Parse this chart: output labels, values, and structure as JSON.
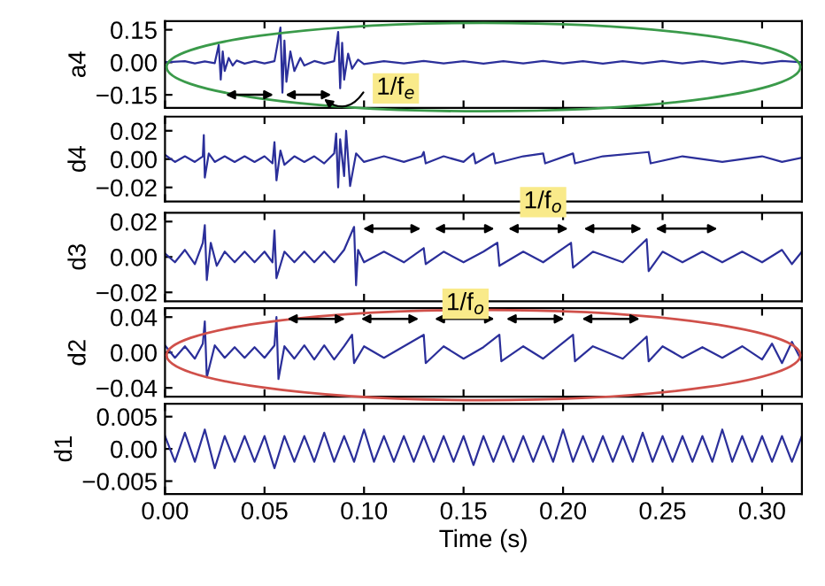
{
  "chart_data": [
    {
      "type": "line",
      "ylabel": "a4",
      "xlim": [
        0,
        0.32
      ],
      "ylim": [
        -0.21,
        0.19
      ],
      "tick_labels": "y",
      "grid": false,
      "xticks": [
        0,
        0.05,
        0.1,
        0.15,
        0.2,
        0.25,
        0.3
      ],
      "yticks": [
        {
          "value": 0.15,
          "label": "0.15"
        },
        {
          "value": 0,
          "label": "0.00"
        },
        {
          "value": -0.15,
          "label": "−0.15"
        }
      ],
      "annotations": [
        {
          "text": "1/f$_{e}$",
          "x": 0.116,
          "y": -0.12
        }
      ],
      "series": [
        {
          "color": "#2b2f9a",
          "x": [
            0,
            0.01,
            0.015,
            0.02,
            0.025,
            0.027,
            0.028,
            0.029,
            0.03,
            0.032,
            0.034,
            0.036,
            0.04,
            0.045,
            0.05,
            0.055,
            0.058,
            0.059,
            0.06,
            0.061,
            0.063,
            0.065,
            0.068,
            0.07,
            0.075,
            0.08,
            0.085,
            0.087,
            0.088,
            0.089,
            0.09,
            0.092,
            0.094,
            0.097,
            0.1,
            0.11,
            0.12,
            0.13,
            0.14,
            0.15,
            0.16,
            0.17,
            0.18,
            0.19,
            0.2,
            0.21,
            0.22,
            0.23,
            0.24,
            0.25,
            0.26,
            0.27,
            0.28,
            0.29,
            0.3,
            0.31,
            0.32
          ],
          "values": [
            0,
            0.005,
            -0.005,
            0.004,
            -0.004,
            0.08,
            -0.08,
            0.05,
            -0.04,
            0.02,
            -0.015,
            0.008,
            -0.006,
            0.005,
            -0.005,
            0.005,
            0.16,
            -0.14,
            0.1,
            -0.09,
            0.05,
            -0.04,
            0.02,
            -0.015,
            0.006,
            -0.006,
            0.005,
            0.14,
            -0.12,
            0.09,
            -0.08,
            0.04,
            -0.03,
            0.012,
            -0.008,
            0.005,
            -0.005,
            0.006,
            -0.005,
            0.005,
            -0.006,
            0.005,
            -0.005,
            0.006,
            -0.005,
            0.005,
            -0.006,
            0.005,
            -0.005,
            0.006,
            -0.005,
            0.005,
            -0.006,
            0.005,
            -0.005,
            0.006,
            0
          ]
        }
      ]
    },
    {
      "type": "line",
      "ylabel": "d4",
      "xlim": [
        0,
        0.32
      ],
      "ylim": [
        -0.03,
        0.03
      ],
      "tick_labels": "y",
      "grid": false,
      "xticks": [
        0,
        0.05,
        0.1,
        0.15,
        0.2,
        0.25,
        0.3
      ],
      "yticks": [
        {
          "value": 0.02,
          "label": "0.02"
        },
        {
          "value": 0,
          "label": "0.00"
        },
        {
          "value": -0.02,
          "label": "−0.02"
        }
      ],
      "series": [
        {
          "color": "#2b2f9a",
          "x": [
            0,
            0.005,
            0.01,
            0.015,
            0.019,
            0.0195,
            0.02,
            0.022,
            0.025,
            0.03,
            0.035,
            0.04,
            0.045,
            0.05,
            0.054,
            0.055,
            0.056,
            0.058,
            0.06,
            0.065,
            0.07,
            0.075,
            0.08,
            0.085,
            0.086,
            0.087,
            0.088,
            0.09,
            0.091,
            0.093,
            0.096,
            0.1,
            0.11,
            0.12,
            0.129,
            0.13,
            0.131,
            0.14,
            0.15,
            0.155,
            0.156,
            0.165,
            0.166,
            0.18,
            0.19,
            0.191,
            0.205,
            0.206,
            0.22,
            0.243,
            0.244,
            0.26,
            0.28,
            0.3,
            0.31,
            0.32
          ],
          "values": [
            0.003,
            -0.002,
            0.002,
            -0.002,
            0.002,
            0.017,
            -0.013,
            0.004,
            -0.002,
            0.002,
            -0.002,
            0.002,
            -0.002,
            0.002,
            -0.003,
            0.012,
            -0.015,
            0.006,
            -0.004,
            0.002,
            -0.002,
            0.002,
            -0.003,
            0.004,
            0.018,
            -0.02,
            0.014,
            -0.012,
            0.02,
            -0.019,
            0.004,
            -0.002,
            0.002,
            -0.002,
            0.002,
            0.005,
            -0.003,
            0.002,
            -0.002,
            0.004,
            -0.003,
            0.004,
            -0.003,
            0.002,
            0.004,
            -0.003,
            0.004,
            -0.003,
            0.002,
            0.005,
            -0.003,
            0.002,
            -0.002,
            0.002,
            -0.002,
            0.001
          ]
        }
      ]
    },
    {
      "type": "line",
      "ylabel": "d3",
      "xlim": [
        0,
        0.32
      ],
      "ylim": [
        -0.025,
        0.025
      ],
      "tick_labels": "y",
      "grid": false,
      "xticks": [
        0,
        0.05,
        0.1,
        0.15,
        0.2,
        0.25,
        0.3
      ],
      "yticks": [
        {
          "value": 0.02,
          "label": "0.02"
        },
        {
          "value": 0,
          "label": "0.00"
        },
        {
          "value": -0.02,
          "label": "−0.02"
        }
      ],
      "annotations": [
        {
          "text": "1/f$_{o}$",
          "x": 0.19,
          "y": 0.031
        }
      ],
      "series": [
        {
          "color": "#2b2f9a",
          "x": [
            0,
            0.005,
            0.01,
            0.015,
            0.019,
            0.02,
            0.021,
            0.023,
            0.026,
            0.03,
            0.035,
            0.04,
            0.045,
            0.05,
            0.054,
            0.055,
            0.056,
            0.06,
            0.065,
            0.07,
            0.075,
            0.08,
            0.085,
            0.09,
            0.095,
            0.096,
            0.097,
            0.1,
            0.11,
            0.12,
            0.13,
            0.131,
            0.14,
            0.15,
            0.16,
            0.167,
            0.168,
            0.18,
            0.19,
            0.204,
            0.205,
            0.215,
            0.23,
            0.242,
            0.243,
            0.25,
            0.26,
            0.27,
            0.28,
            0.29,
            0.3,
            0.31,
            0.315,
            0.32
          ],
          "values": [
            0.002,
            -0.003,
            0.004,
            -0.004,
            0.008,
            0.018,
            -0.013,
            0.008,
            -0.005,
            0.003,
            -0.003,
            0.003,
            -0.003,
            0.003,
            -0.003,
            0.015,
            -0.012,
            0.003,
            -0.003,
            0.003,
            -0.003,
            0.003,
            -0.003,
            0.004,
            0.017,
            -0.016,
            0.004,
            -0.003,
            0.003,
            -0.003,
            0.005,
            -0.004,
            0.003,
            -0.003,
            0.003,
            0.008,
            -0.005,
            0.003,
            -0.003,
            0.008,
            -0.006,
            0.003,
            -0.003,
            0.01,
            -0.008,
            0.003,
            -0.003,
            0.003,
            -0.003,
            0.003,
            -0.003,
            0.004,
            -0.004,
            0.003
          ]
        }
      ]
    },
    {
      "type": "line",
      "ylabel": "d2",
      "xlim": [
        0,
        0.32
      ],
      "ylim": [
        -0.05,
        0.05
      ],
      "tick_labels": "y",
      "grid": false,
      "xticks": [
        0,
        0.05,
        0.1,
        0.15,
        0.2,
        0.25,
        0.3
      ],
      "yticks": [
        {
          "value": 0.04,
          "label": "0.04"
        },
        {
          "value": 0,
          "label": "0.00"
        },
        {
          "value": -0.04,
          "label": "−0.04"
        }
      ],
      "annotations": [
        {
          "text": "1/f$_{o}$",
          "x": 0.151,
          "y": 0.055
        }
      ],
      "series": [
        {
          "color": "#2b2f9a",
          "x": [
            0,
            0.005,
            0.01,
            0.015,
            0.019,
            0.02,
            0.021,
            0.025,
            0.03,
            0.035,
            0.04,
            0.045,
            0.05,
            0.055,
            0.056,
            0.057,
            0.06,
            0.065,
            0.07,
            0.075,
            0.08,
            0.085,
            0.09,
            0.094,
            0.095,
            0.1,
            0.11,
            0.12,
            0.13,
            0.131,
            0.14,
            0.15,
            0.16,
            0.168,
            0.169,
            0.18,
            0.19,
            0.205,
            0.206,
            0.215,
            0.23,
            0.242,
            0.243,
            0.25,
            0.26,
            0.27,
            0.28,
            0.29,
            0.3,
            0.305,
            0.31,
            0.315,
            0.32
          ],
          "values": [
            0.008,
            -0.006,
            0.007,
            -0.007,
            0.01,
            0.035,
            -0.028,
            0.008,
            -0.006,
            0.006,
            -0.006,
            0.006,
            -0.006,
            0.008,
            0.04,
            -0.03,
            0.007,
            -0.007,
            0.008,
            -0.008,
            0.008,
            -0.008,
            0.007,
            0.02,
            -0.012,
            0.007,
            -0.006,
            0.007,
            0.02,
            -0.012,
            0.007,
            -0.007,
            0.006,
            0.02,
            -0.01,
            0.007,
            -0.007,
            0.02,
            -0.01,
            0.007,
            -0.007,
            0.018,
            -0.01,
            0.007,
            -0.006,
            0.006,
            -0.006,
            0.007,
            -0.008,
            0.01,
            -0.012,
            0.012,
            -0.01
          ]
        }
      ]
    },
    {
      "type": "line",
      "ylabel": "d1",
      "xlabel": "Time (s)",
      "xlim": [
        0,
        0.32
      ],
      "ylim": [
        -0.007,
        0.007
      ],
      "grid": false,
      "xticks": [
        {
          "value": 0,
          "label": "0.00"
        },
        {
          "value": 0.05,
          "label": "0.05"
        },
        {
          "value": 0.1,
          "label": "0.10"
        },
        {
          "value": 0.15,
          "label": "0.15"
        },
        {
          "value": 0.2,
          "label": "0.20"
        },
        {
          "value": 0.25,
          "label": "0.25"
        },
        {
          "value": 0.3,
          "label": "0.30"
        }
      ],
      "yticks": [
        {
          "value": 0.005,
          "label": "0.005"
        },
        {
          "value": 0,
          "label": "0.00"
        },
        {
          "value": -0.005,
          "label": "−0.005"
        }
      ],
      "series": [
        {
          "color": "#2b2f9a",
          "x": [
            0,
            0.005,
            0.01,
            0.015,
            0.02,
            0.025,
            0.03,
            0.035,
            0.04,
            0.045,
            0.05,
            0.055,
            0.06,
            0.065,
            0.07,
            0.075,
            0.08,
            0.085,
            0.09,
            0.095,
            0.1,
            0.105,
            0.11,
            0.115,
            0.12,
            0.125,
            0.13,
            0.135,
            0.14,
            0.145,
            0.15,
            0.155,
            0.16,
            0.165,
            0.17,
            0.175,
            0.18,
            0.185,
            0.19,
            0.195,
            0.2,
            0.205,
            0.21,
            0.215,
            0.22,
            0.225,
            0.23,
            0.235,
            0.24,
            0.245,
            0.25,
            0.255,
            0.26,
            0.265,
            0.27,
            0.275,
            0.28,
            0.285,
            0.29,
            0.295,
            0.3,
            0.305,
            0.31,
            0.315,
            0.32
          ],
          "values": [
            0.002,
            -0.002,
            0.0025,
            -0.002,
            0.003,
            -0.003,
            0.002,
            -0.002,
            0.002,
            -0.002,
            0.002,
            -0.003,
            0.002,
            -0.002,
            0.002,
            -0.002,
            0.0025,
            -0.002,
            0.002,
            -0.002,
            0.003,
            -0.002,
            0.002,
            -0.002,
            0.002,
            -0.002,
            0.002,
            -0.002,
            0.002,
            -0.002,
            0.002,
            -0.0025,
            0.002,
            -0.002,
            0.002,
            -0.002,
            0.002,
            -0.002,
            0.002,
            -0.002,
            0.003,
            -0.002,
            0.002,
            -0.002,
            0.002,
            -0.002,
            0.002,
            -0.002,
            0.0025,
            -0.002,
            0.002,
            -0.002,
            0.002,
            -0.002,
            0.002,
            -0.002,
            0.003,
            -0.002,
            0.002,
            -0.002,
            0.002,
            -0.002,
            0.002,
            -0.002,
            0.002
          ]
        }
      ]
    }
  ]
}
